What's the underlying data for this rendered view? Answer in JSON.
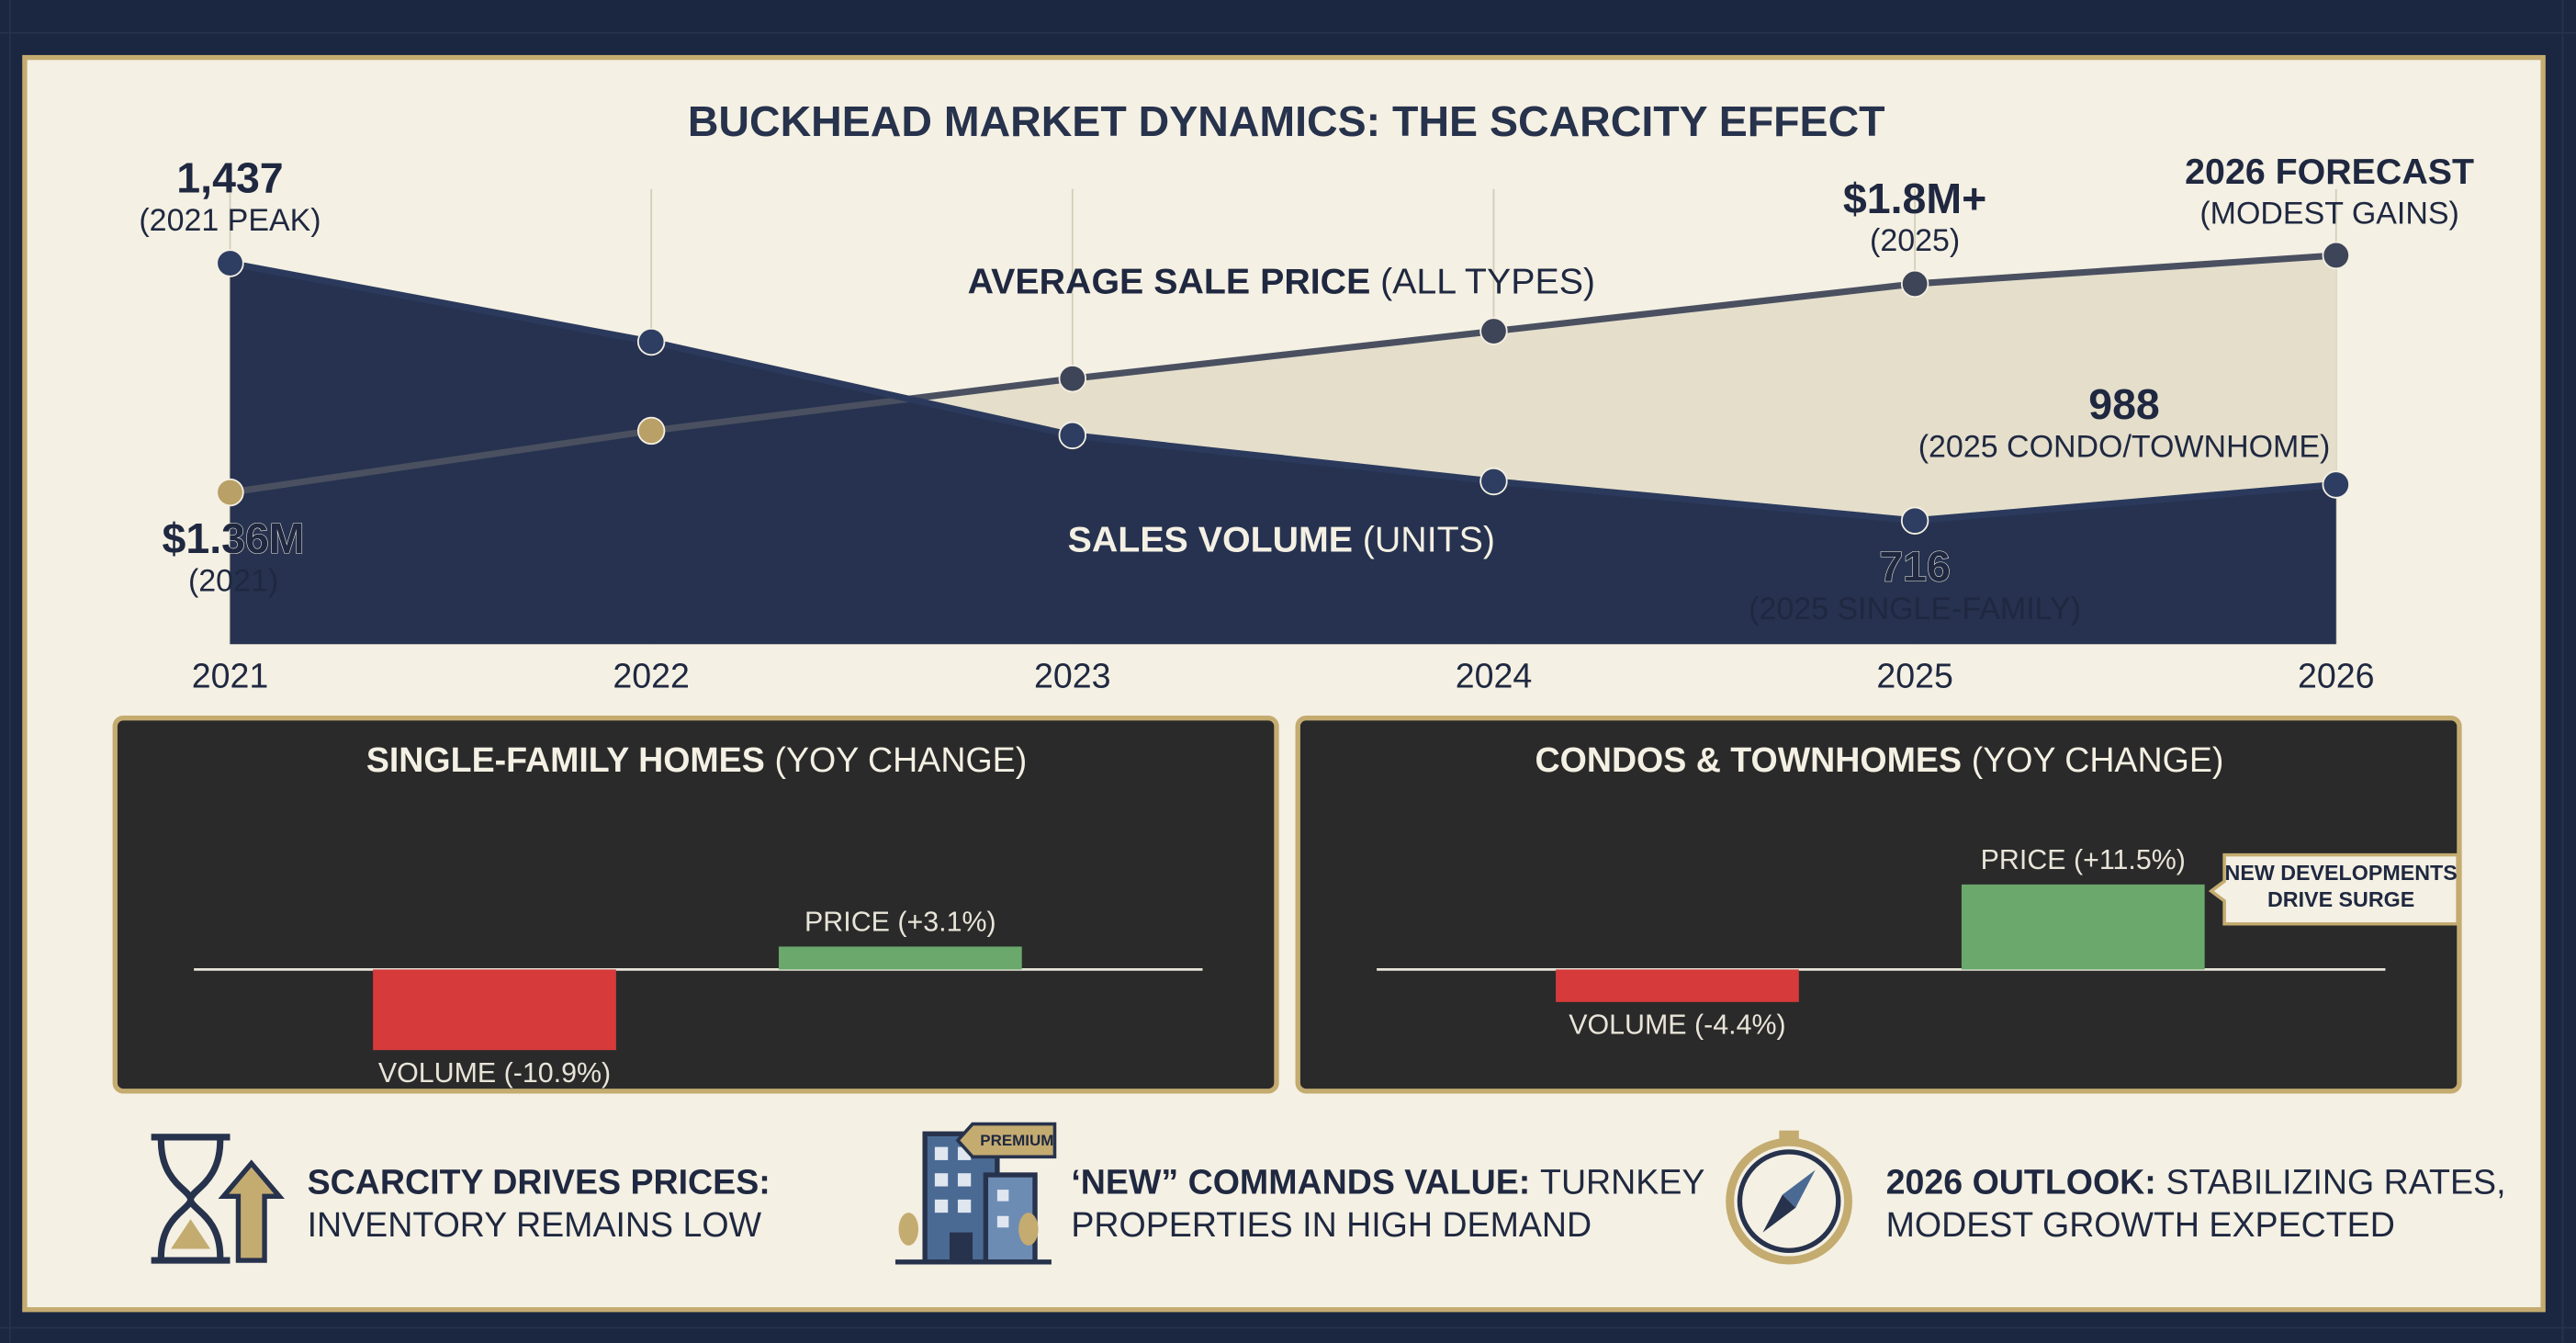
{
  "title": "BUCKHEAD MARKET DYNAMICS: THE SCARCITY EFFECT",
  "chart_data": [
    {
      "type": "area-line",
      "categories": [
        "2021",
        "2022",
        "2023",
        "2024",
        "2025",
        "2026"
      ],
      "ylim": [
        370,
        1645
      ],
      "y2lim": [
        1.04,
        2.0
      ],
      "series": [
        {
          "name": "SALES VOLUME",
          "name_suffix": "(UNITS)",
          "color": "#2b3a5c",
          "fill": "#26324f",
          "values": [
            1437,
            1217,
            955,
            826,
            716,
            817
          ],
          "value_labels": [
            "1,437",
            null,
            null,
            null,
            "716",
            null
          ],
          "value_notes": [
            "(2021 PEAK)",
            null,
            null,
            null,
            "(2025 SINGLE-FAMILY)",
            null
          ]
        },
        {
          "name": "AVERAGE SALE PRICE",
          "name_suffix": "(ALL TYPES)",
          "axis": "y2",
          "color": "#4a5060",
          "fill": "#e4decb",
          "values": [
            1.36,
            1.49,
            1.6,
            1.7,
            1.8,
            1.86
          ],
          "value_labels": [
            "$1.36M",
            null,
            null,
            null,
            "$1.8M+",
            null
          ],
          "value_notes": [
            "(2021)",
            null,
            null,
            null,
            "(2025)",
            null
          ]
        }
      ],
      "annotations": [
        {
          "value": 988,
          "note": "(2025 CONDO/TOWNHOME)"
        },
        {
          "label": "2026 FORECAST",
          "note": "(MODEST GAINS)"
        }
      ]
    },
    {
      "type": "bar",
      "title": "SINGLE-FAMILY HOMES",
      "subtitle": "(YOY CHANGE)",
      "ylim": [
        -13,
        13
      ],
      "values": [
        -10.9,
        3.1
      ],
      "value_labels": [
        "VOLUME (-10.9%)",
        "PRICE (+3.1%)"
      ],
      "colors": [
        "#d63a3a",
        "#6aa86c"
      ]
    },
    {
      "type": "bar",
      "title": "CONDOS & TOWNHOMES",
      "subtitle": "(YOY CHANGE)",
      "ylim": [
        -13,
        13
      ],
      "values": [
        -4.4,
        11.5
      ],
      "value_labels": [
        "VOLUME (-4.4%)",
        "PRICE (+11.5%)"
      ],
      "colors": [
        "#d63a3a",
        "#6aa86c"
      ],
      "callout": [
        "NEW DEVELOPMENTS",
        "DRIVE SURGE"
      ]
    }
  ],
  "highlights": [
    {
      "lead": "SCARCITY DRIVES PRICES:",
      "lead_rest": null,
      "line2": "INVENTORY REMAINS LOW"
    },
    {
      "lead": "‘NEW” COMMANDS VALUE:",
      "lead_rest": "TURNKEY",
      "line2": "PROPERTIES IN HIGH DEMAND",
      "badge": "PREMIUM"
    },
    {
      "lead": "2026 OUTLOOK:",
      "lead_rest": "STABILIZING RATES,",
      "line2": "MODEST GROWTH EXPECTED"
    }
  ]
}
